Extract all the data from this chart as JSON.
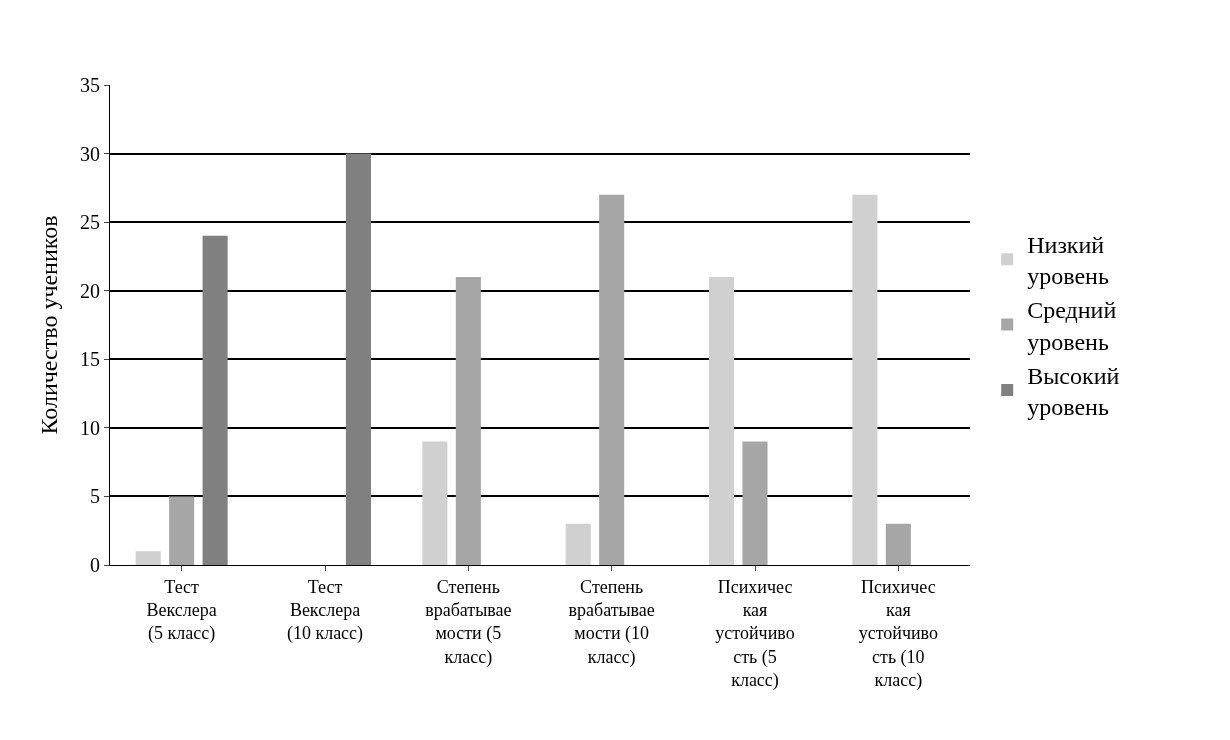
{
  "chart_data": {
    "type": "bar",
    "ylabel": "Количество учеников",
    "categories": [
      "Тест\nВекслера\n(5 класс)",
      "Тест\nВекслера\n(10 класс)",
      "Степень\nврабатывае\nмости (5\nкласс)",
      "Степень\nврабатывае\nмости (10\nкласс)",
      "Психичес\nкая\nустойчиво\nсть (5\nкласс)",
      "Психичес\nкая\nустойчиво\nсть (10\nкласс)"
    ],
    "series": [
      {
        "name": "Низкий уровень",
        "color": "#d0d0d0",
        "values": [
          1,
          0,
          9,
          3,
          21,
          27
        ]
      },
      {
        "name": "Средний уровень",
        "color": "#a6a6a6",
        "values": [
          5,
          0,
          21,
          27,
          9,
          3
        ]
      },
      {
        "name": "Высокий уровень",
        "color": "#808080",
        "values": [
          24,
          30,
          0,
          0,
          0,
          0
        ]
      }
    ],
    "ylim": [
      0,
      35
    ],
    "yticks": [
      0,
      5,
      10,
      15,
      20,
      25,
      30,
      35
    ],
    "grid": "y",
    "legend": "right"
  }
}
